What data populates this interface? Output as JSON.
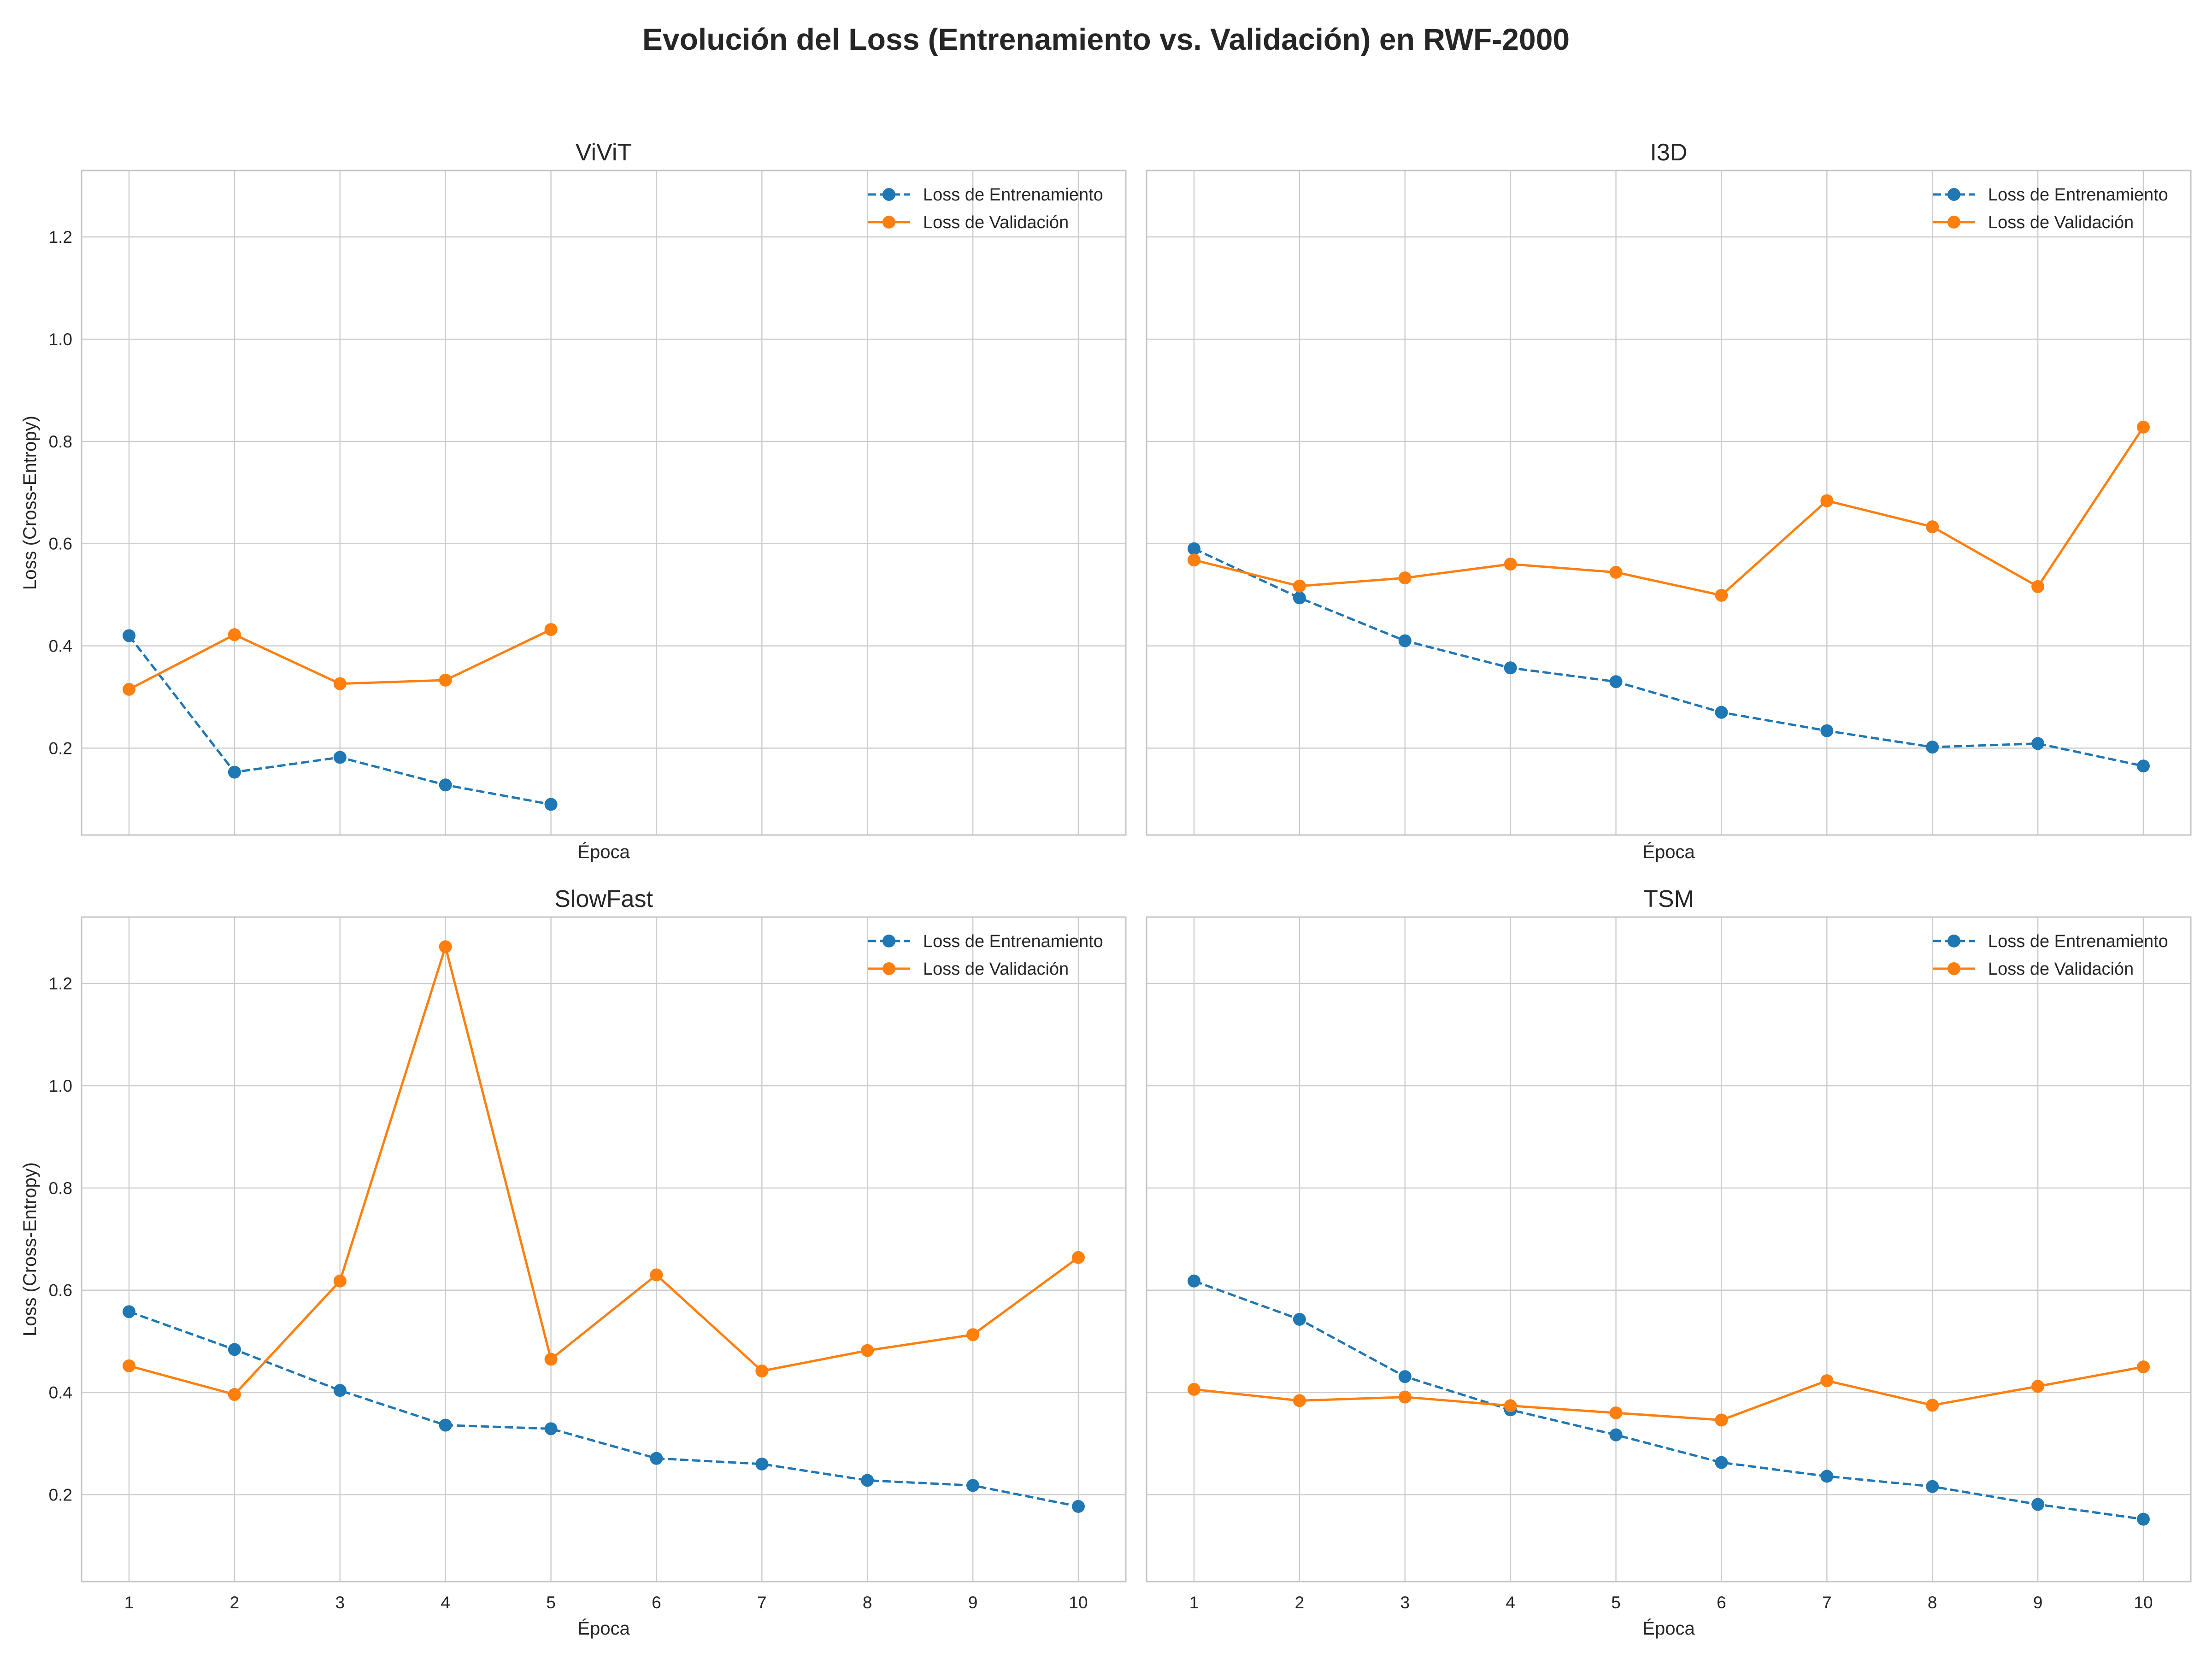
{
  "figure": {
    "title": "Evolución del Loss (Entrenamiento vs. Validación) en RWF-2000"
  },
  "chart_data": [
    {
      "type": "line",
      "title": "ViViT",
      "xlabel": "Época",
      "ylabel": "Loss (Cross-Entropy)",
      "xlim": [
        0.55,
        10.45
      ],
      "ylim": [
        0.03,
        1.33
      ],
      "xticks": [],
      "yticks": [
        "0.2",
        "0.4",
        "0.6",
        "0.8",
        "1.0",
        "1.2"
      ],
      "xgrid": [
        1,
        2,
        3,
        4,
        5,
        6,
        7,
        8,
        9,
        10
      ],
      "grid": true,
      "legend": "top-right",
      "series": [
        {
          "name": "Loss de Entrenamiento",
          "color": "#1f77b4",
          "style": "dashed",
          "x": [
            1,
            2,
            3,
            4,
            5
          ],
          "y": [
            0.42,
            0.153,
            0.182,
            0.128,
            0.09
          ]
        },
        {
          "name": "Loss de Validación",
          "color": "#ff7f0e",
          "style": "solid",
          "x": [
            1,
            2,
            3,
            4,
            5
          ],
          "y": [
            0.315,
            0.422,
            0.326,
            0.333,
            0.432
          ]
        }
      ]
    },
    {
      "type": "line",
      "title": "I3D",
      "xlabel": "Época",
      "ylabel": "",
      "xlim": [
        0.55,
        10.45
      ],
      "ylim": [
        0.03,
        1.33
      ],
      "xticks": [],
      "yticks": [],
      "xgrid": [
        1,
        2,
        3,
        4,
        5,
        6,
        7,
        8,
        9,
        10
      ],
      "grid": true,
      "legend": "top-right",
      "series": [
        {
          "name": "Loss de Entrenamiento",
          "color": "#1f77b4",
          "style": "dashed",
          "x": [
            1,
            2,
            3,
            4,
            5,
            6,
            7,
            8,
            9,
            10
          ],
          "y": [
            0.59,
            0.494,
            0.41,
            0.357,
            0.33,
            0.27,
            0.234,
            0.202,
            0.209,
            0.165
          ]
        },
        {
          "name": "Loss de Validación",
          "color": "#ff7f0e",
          "style": "solid",
          "x": [
            1,
            2,
            3,
            4,
            5,
            6,
            7,
            8,
            9,
            10
          ],
          "y": [
            0.568,
            0.517,
            0.533,
            0.56,
            0.544,
            0.499,
            0.684,
            0.633,
            0.516,
            0.828
          ]
        }
      ]
    },
    {
      "type": "line",
      "title": "SlowFast",
      "xlabel": "Época",
      "ylabel": "Loss (Cross-Entropy)",
      "xlim": [
        0.55,
        10.45
      ],
      "ylim": [
        0.03,
        1.33
      ],
      "xticks": [
        "1",
        "2",
        "3",
        "4",
        "5",
        "6",
        "7",
        "8",
        "9",
        "10"
      ],
      "yticks": [
        "0.2",
        "0.4",
        "0.6",
        "0.8",
        "1.0",
        "1.2"
      ],
      "xgrid": [
        1,
        2,
        3,
        4,
        5,
        6,
        7,
        8,
        9,
        10
      ],
      "grid": true,
      "legend": "top-right",
      "series": [
        {
          "name": "Loss de Entrenamiento",
          "color": "#1f77b4",
          "style": "dashed",
          "x": [
            1,
            2,
            3,
            4,
            5,
            6,
            7,
            8,
            9,
            10
          ],
          "y": [
            0.558,
            0.484,
            0.404,
            0.336,
            0.329,
            0.271,
            0.26,
            0.228,
            0.218,
            0.177
          ]
        },
        {
          "name": "Loss de Validación",
          "color": "#ff7f0e",
          "style": "solid",
          "x": [
            1,
            2,
            3,
            4,
            5,
            6,
            7,
            8,
            9,
            10
          ],
          "y": [
            0.452,
            0.396,
            0.618,
            1.272,
            0.465,
            0.63,
            0.442,
            0.482,
            0.513,
            0.664
          ]
        }
      ]
    },
    {
      "type": "line",
      "title": "TSM",
      "xlabel": "Época",
      "ylabel": "",
      "xlim": [
        0.55,
        10.45
      ],
      "ylim": [
        0.03,
        1.33
      ],
      "xticks": [
        "1",
        "2",
        "3",
        "4",
        "5",
        "6",
        "7",
        "8",
        "9",
        "10"
      ],
      "yticks": [],
      "xgrid": [
        1,
        2,
        3,
        4,
        5,
        6,
        7,
        8,
        9,
        10
      ],
      "grid": true,
      "legend": "top-right",
      "series": [
        {
          "name": "Loss de Entrenamiento",
          "color": "#1f77b4",
          "style": "dashed",
          "x": [
            1,
            2,
            3,
            4,
            5,
            6,
            7,
            8,
            9,
            10
          ],
          "y": [
            0.618,
            0.543,
            0.431,
            0.366,
            0.317,
            0.263,
            0.236,
            0.216,
            0.181,
            0.152
          ]
        },
        {
          "name": "Loss de Validación",
          "color": "#ff7f0e",
          "style": "solid",
          "x": [
            1,
            2,
            3,
            4,
            5,
            6,
            7,
            8,
            9,
            10
          ],
          "y": [
            0.406,
            0.384,
            0.391,
            0.374,
            0.36,
            0.346,
            0.423,
            0.375,
            0.412,
            0.45
          ]
        }
      ]
    }
  ]
}
